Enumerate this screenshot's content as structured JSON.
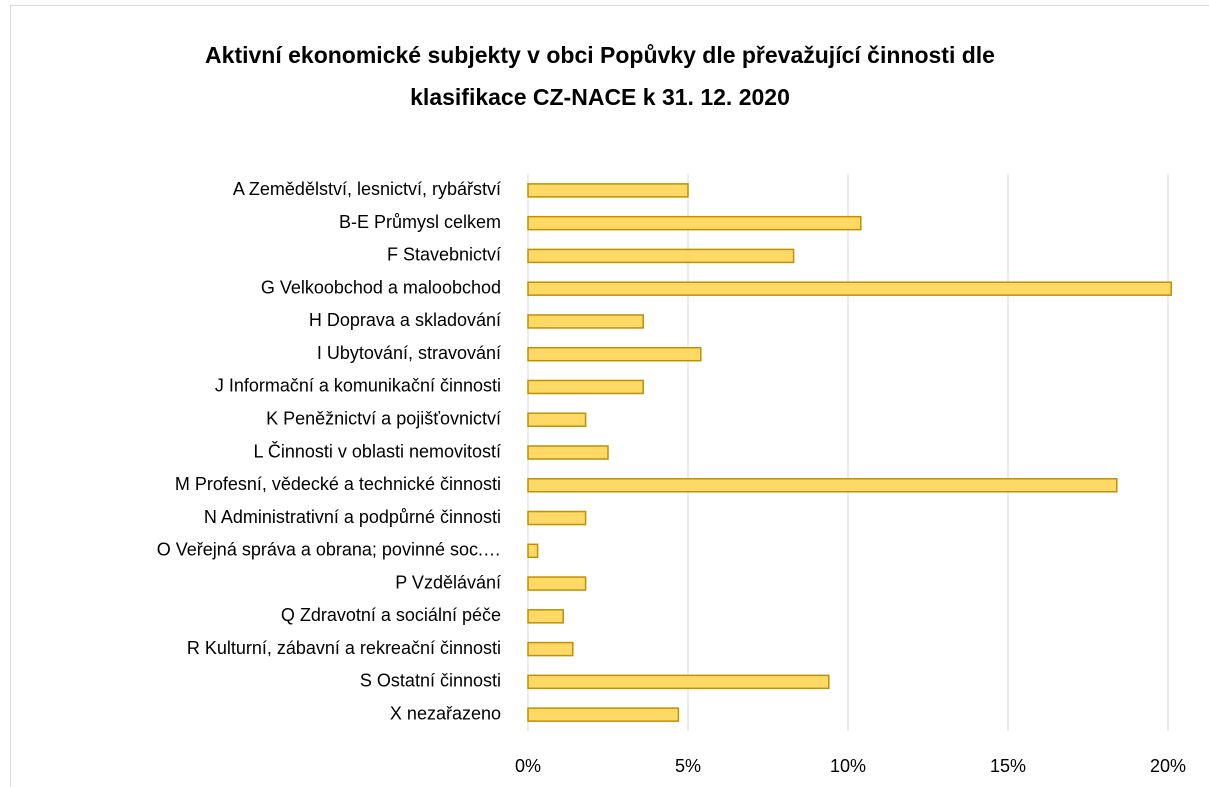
{
  "chart_data": {
    "type": "bar",
    "orientation": "horizontal",
    "title": "Aktivní ekonomické subjekty v obci Popůvky dle převažující činnosti dle klasifikace CZ-NACE k 31. 12. 2020",
    "categories": [
      "A Zemědělství, lesnictví, rybářství",
      "B-E Průmysl celkem",
      "F Stavebnictví",
      "G Velkoobchod a maloobchod",
      "H Doprava a skladování",
      "I Ubytování, stravování",
      "J Informační a komunikační činnosti",
      "K Peněžnictví a pojišťovnictví",
      "L Činnosti v oblasti nemovitostí",
      "M Profesní, vědecké a technické činnosti",
      "N Administrativní a podpůrné činnosti",
      "O Veřejná správa a obrana; povinné soc.…",
      "P Vzdělávání",
      "Q Zdravotní a sociální péče",
      "R Kulturní, zábavní a rekreační činnosti",
      "S Ostatní činnosti",
      "X nezařazeno"
    ],
    "values": [
      5.0,
      10.4,
      8.3,
      20.1,
      3.6,
      5.4,
      3.6,
      1.8,
      2.5,
      18.4,
      1.8,
      0.3,
      1.8,
      1.1,
      1.4,
      9.4,
      4.7
    ],
    "color": "#ffd966",
    "edge_color": "#bf9000",
    "xlim": [
      0,
      20
    ],
    "xticks": [
      {
        "value": 0,
        "label": "0%"
      },
      {
        "value": 5,
        "label": "5%"
      },
      {
        "value": 10,
        "label": "10%"
      },
      {
        "value": 15,
        "label": "15%"
      },
      {
        "value": 20,
        "label": "20%"
      }
    ],
    "grid": true
  }
}
